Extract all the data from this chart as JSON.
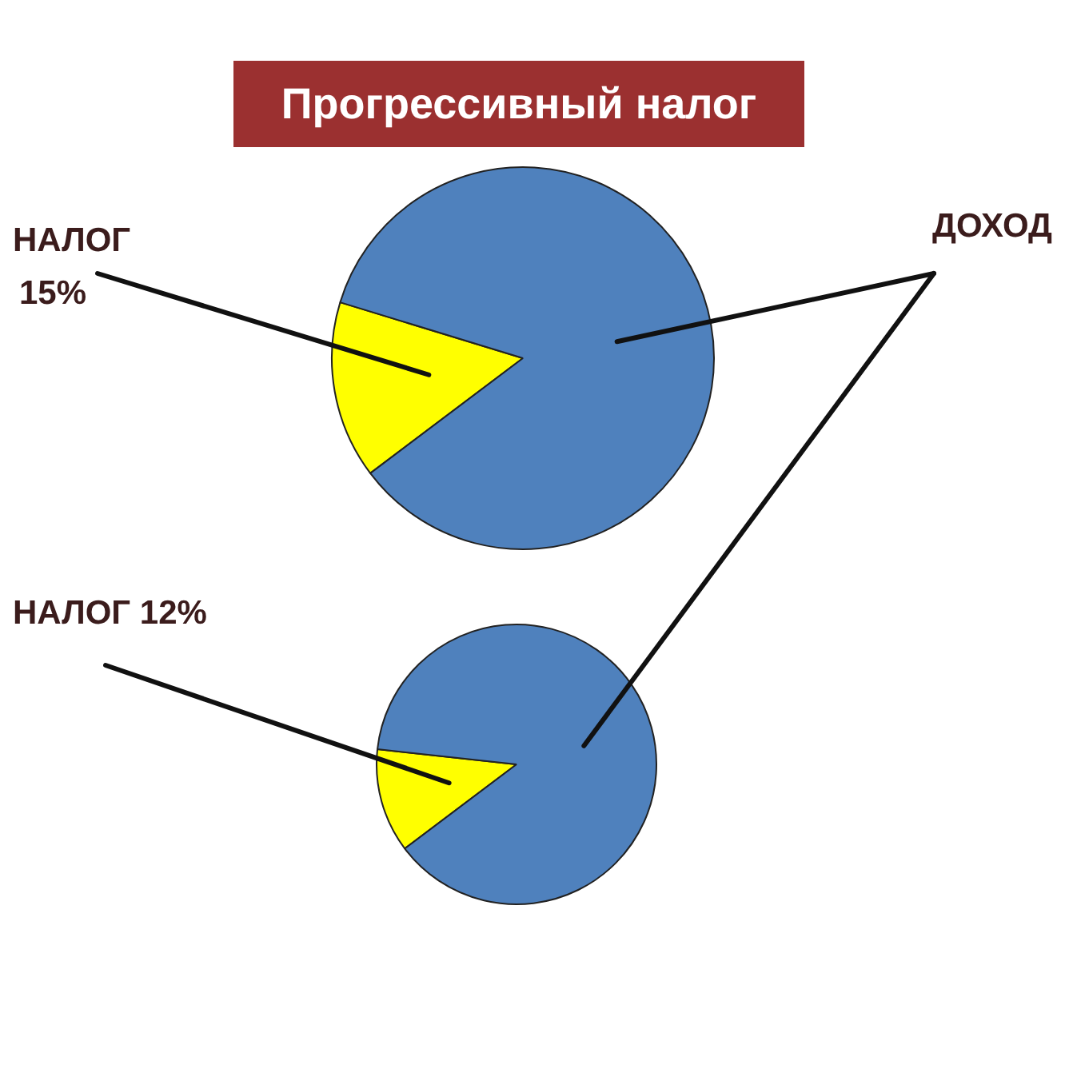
{
  "chart_data": [
    {
      "type": "pie",
      "title": "Прогрессивный налог",
      "categories": [
        "НАЛОГ",
        "ДОХОД"
      ],
      "values": [
        15,
        85
      ],
      "colors": [
        "#ffff00",
        "#4f81bd"
      ],
      "value_labels": [
        "15%",
        null
      ]
    },
    {
      "type": "pie",
      "categories": [
        "НАЛОГ",
        null
      ],
      "values": [
        12,
        88
      ],
      "colors": [
        "#ffff00",
        "#4f81bd"
      ],
      "value_labels": [
        "12%",
        null
      ]
    }
  ]
}
